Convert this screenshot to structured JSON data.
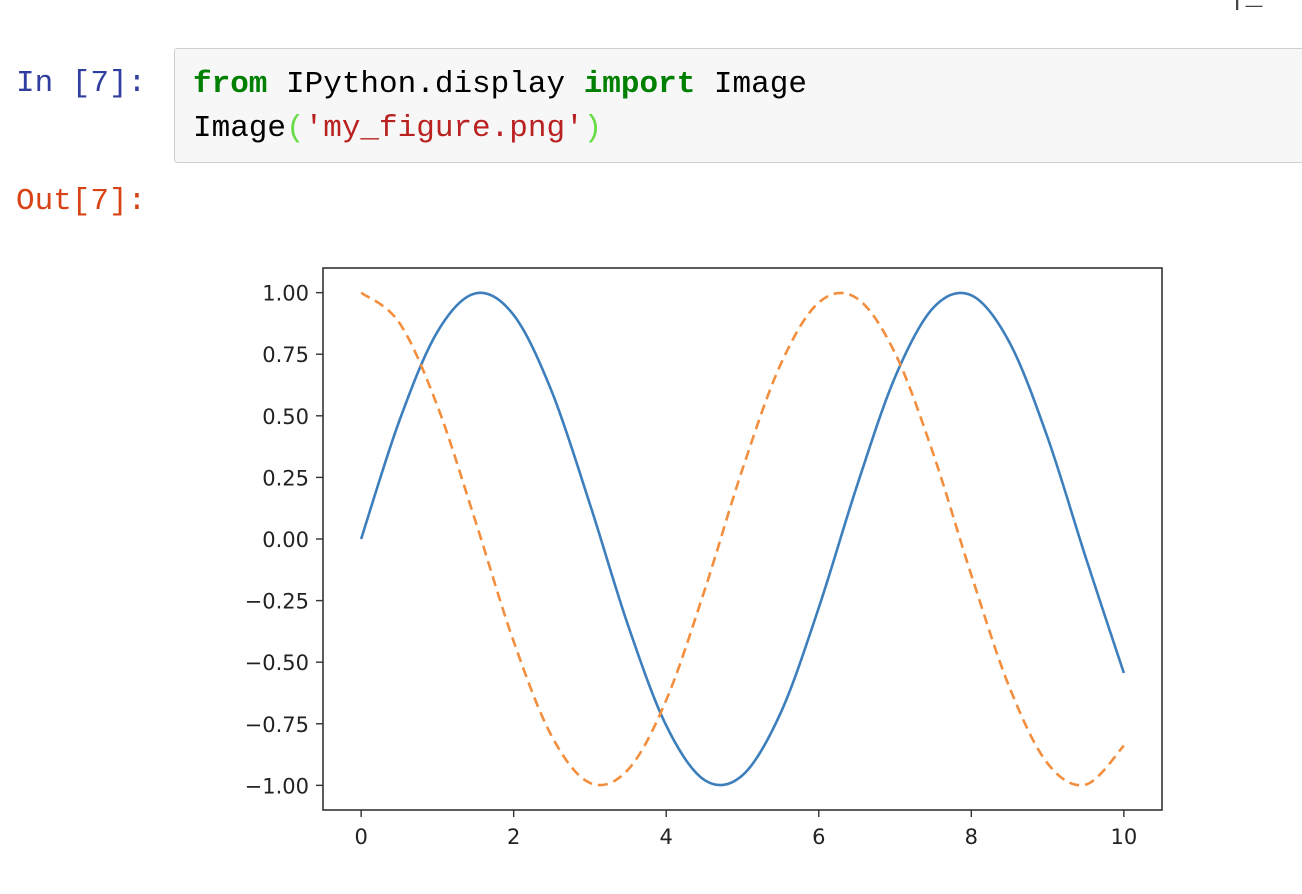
{
  "topbar": {
    "fragment": "¦_ ·"
  },
  "cell_in": {
    "prompt": "In [7]:",
    "code": {
      "line1": {
        "from": "from",
        "module": " IPython.display ",
        "import": "import",
        "name": " Image"
      },
      "line2": {
        "func": "Image",
        "open_paren": "(",
        "string": "'my_figure.png'",
        "close_paren": ")"
      }
    }
  },
  "cell_out": {
    "prompt": "Out[7]:"
  },
  "colors": {
    "in_prompt": "#303f9f",
    "out_prompt": "#d84315",
    "keyword": "#008000",
    "string": "#ba2121",
    "series_solid": "#3d7fbd",
    "series_dashed": "#f28e3d"
  },
  "chart_data": {
    "type": "line",
    "title": "",
    "xlabel": "",
    "ylabel": "",
    "xlim": [
      -0.5,
      10.5
    ],
    "ylim": [
      -1.1,
      1.1
    ],
    "xticks": [
      0,
      2,
      4,
      6,
      8,
      10
    ],
    "xtick_labels": [
      "0",
      "2",
      "4",
      "6",
      "8",
      "10"
    ],
    "yticks": [
      1.0,
      0.75,
      0.5,
      0.25,
      0.0,
      -0.25,
      -0.5,
      -0.75,
      -1.0
    ],
    "ytick_labels": [
      "1.00",
      "0.75",
      "0.50",
      "0.25",
      "0.00",
      "−0.25",
      "−0.50",
      "−0.75",
      "−1.00"
    ],
    "grid": false,
    "legend": false,
    "x": [
      0,
      0.5,
      1,
      1.5,
      2,
      2.5,
      3,
      3.5,
      4,
      4.5,
      5,
      5.5,
      6,
      6.5,
      7,
      7.5,
      8,
      8.5,
      9,
      9.5,
      10
    ],
    "series": [
      {
        "style": "solid",
        "color": "#3d7fbd",
        "values": [
          0.0,
          0.479,
          0.841,
          0.997,
          0.909,
          0.598,
          0.141,
          -0.351,
          -0.757,
          -0.978,
          -0.959,
          -0.706,
          -0.279,
          0.215,
          0.657,
          0.938,
          0.989,
          0.798,
          0.412,
          -0.075,
          -0.544
        ]
      },
      {
        "style": "dashed",
        "color": "#f28e3d",
        "values": [
          1.0,
          0.878,
          0.54,
          0.071,
          -0.416,
          -0.801,
          -0.99,
          -0.936,
          -0.654,
          -0.211,
          0.284,
          0.709,
          0.96,
          0.977,
          0.754,
          0.347,
          -0.146,
          -0.602,
          -0.911,
          -0.997,
          -0.839
        ]
      }
    ]
  }
}
